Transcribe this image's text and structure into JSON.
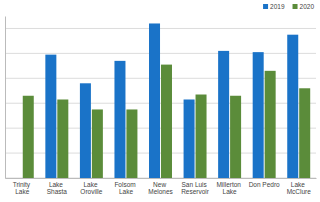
{
  "chart_data": {
    "type": "bar",
    "categories": [
      "Trinity Lake",
      "Lake Shasta",
      "Lake Oroville",
      "Folsom Lake",
      "New Melones",
      "San Luis Reservoir",
      "Millerton Lake",
      "Don Pedro",
      "Lake McClure"
    ],
    "series": [
      {
        "name": "2019",
        "color": "#1a73c8",
        "values": [
          null,
          99,
          76,
          94,
          124,
          63,
          102,
          101,
          115
        ]
      },
      {
        "name": "2020",
        "color": "#5b8c3a",
        "values": [
          66,
          63,
          55,
          55,
          91,
          67,
          66,
          86,
          72
        ]
      }
    ],
    "ylim": [
      0,
      130
    ],
    "yticks": [
      0,
      20,
      40,
      60,
      80,
      100,
      120
    ],
    "grid": true,
    "legend": "top-right",
    "tick_labels": "x"
  }
}
